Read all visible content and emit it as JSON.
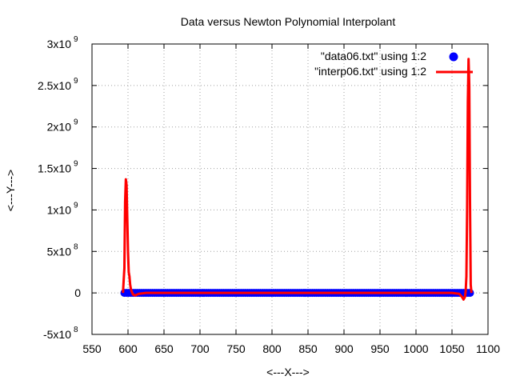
{
  "chart_data": {
    "type": "line",
    "title": "Data versus Newton Polynomial Interpolant",
    "xlabel": "<---X--->",
    "ylabel": "<---Y--->",
    "xlim": [
      550,
      1100
    ],
    "ylim": [
      -500000000,
      3000000000
    ],
    "grid": true,
    "legend_position": "top-right",
    "x_ticks": [
      "550",
      "600",
      "650",
      "700",
      "750",
      "800",
      "850",
      "900",
      "950",
      "1000",
      "1050",
      "1100"
    ],
    "y_ticks": [
      {
        "value": 3000000000,
        "mantissa": "3x10",
        "exp": "9"
      },
      {
        "value": 2500000000,
        "mantissa": "2.5x10",
        "exp": "9"
      },
      {
        "value": 2000000000,
        "mantissa": "2x10",
        "exp": "9"
      },
      {
        "value": 1500000000,
        "mantissa": "1.5x10",
        "exp": "9"
      },
      {
        "value": 1000000000,
        "mantissa": "1x10",
        "exp": "9"
      },
      {
        "value": 500000000,
        "mantissa": "5x10",
        "exp": "8"
      },
      {
        "value": 0,
        "mantissa": "0",
        "exp": ""
      },
      {
        "value": -500000000,
        "mantissa": "-5x10",
        "exp": "8"
      }
    ],
    "series": [
      {
        "name": "\"data06.txt\" using 1:2",
        "style": "points",
        "color": "#0000ff",
        "x_start": 595,
        "x_end": 1076,
        "x_step": 3,
        "y": 0
      },
      {
        "name": "\"interp06.txt\" using 1:2",
        "style": "line",
        "color": "#ff0000",
        "points": [
          [
            593,
            0
          ],
          [
            595,
            300000000
          ],
          [
            596,
            1100000000
          ],
          [
            597,
            1370000000
          ],
          [
            598,
            1300000000
          ],
          [
            599,
            900000000
          ],
          [
            600,
            500000000
          ],
          [
            601,
            250000000
          ],
          [
            602,
            200000000
          ],
          [
            603,
            100000000
          ],
          [
            604,
            50000000
          ],
          [
            605,
            20000000
          ],
          [
            607,
            -20000000
          ],
          [
            610,
            -30000000
          ],
          [
            615,
            -10000000
          ],
          [
            625,
            0
          ],
          [
            700,
            0
          ],
          [
            800,
            0
          ],
          [
            900,
            0
          ],
          [
            1000,
            0
          ],
          [
            1050,
            0
          ],
          [
            1060,
            -10000000
          ],
          [
            1064,
            -50000000
          ],
          [
            1066,
            -80000000
          ],
          [
            1068,
            -50000000
          ],
          [
            1069,
            20000000
          ],
          [
            1070,
            200000000
          ],
          [
            1071,
            1000000000
          ],
          [
            1072,
            2300000000
          ],
          [
            1073,
            2820000000
          ],
          [
            1074,
            2500000000
          ],
          [
            1075,
            1100000000
          ],
          [
            1076,
            100000000
          ],
          [
            1077,
            0
          ]
        ]
      }
    ]
  }
}
